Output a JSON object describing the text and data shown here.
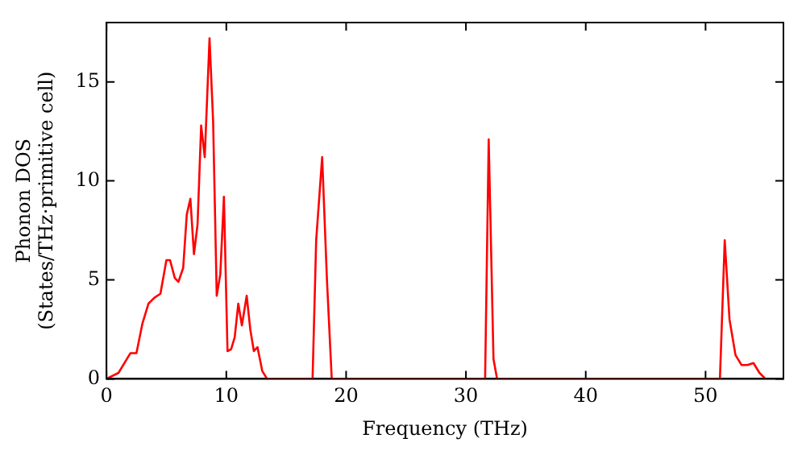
{
  "chart_data": {
    "type": "line",
    "xlabel": "Frequency (THz)",
    "ylabel": "Phonon DOS\n(States/THz·primitive cell)",
    "xlim": [
      0,
      56.5
    ],
    "ylim": [
      0,
      18
    ],
    "xticks": [
      0,
      10,
      20,
      30,
      40,
      50
    ],
    "yticks": [
      0,
      5,
      10,
      15
    ],
    "grid": false,
    "legend": false,
    "marker": "none",
    "line_style": "solid",
    "series": [
      {
        "color": "#ff0000",
        "x": [
          0,
          1,
          2,
          2.5,
          3,
          3.5,
          4,
          4.5,
          5,
          5.3,
          5.7,
          6,
          6.4,
          6.7,
          7,
          7.3,
          7.6,
          7.9,
          8.2,
          8.6,
          8.9,
          9.2,
          9.5,
          9.8,
          10.1,
          10.4,
          10.7,
          11,
          11.3,
          11.7,
          12,
          12.3,
          12.6,
          13,
          13.4,
          17.2,
          17.5,
          18,
          18.4,
          18.8,
          31.6,
          31.9,
          32.3,
          32.6,
          51.2,
          51.6,
          52,
          52.5,
          53,
          53.5,
          54,
          54.5,
          55
        ],
        "values": [
          0,
          0.3,
          1.3,
          1.3,
          2.8,
          3.8,
          4.1,
          4.3,
          6.0,
          6.0,
          5.1,
          4.9,
          5.6,
          8.3,
          9.1,
          6.3,
          7.8,
          12.8,
          11.2,
          17.2,
          13.0,
          4.2,
          5.3,
          9.2,
          1.4,
          1.5,
          2.1,
          3.8,
          2.7,
          4.2,
          2.5,
          1.4,
          1.6,
          0.4,
          0,
          0,
          7,
          11.2,
          5,
          0,
          0,
          12.1,
          1.0,
          0,
          0,
          7.0,
          3.0,
          1.2,
          0.7,
          0.7,
          0.8,
          0.3,
          0
        ]
      }
    ]
  }
}
